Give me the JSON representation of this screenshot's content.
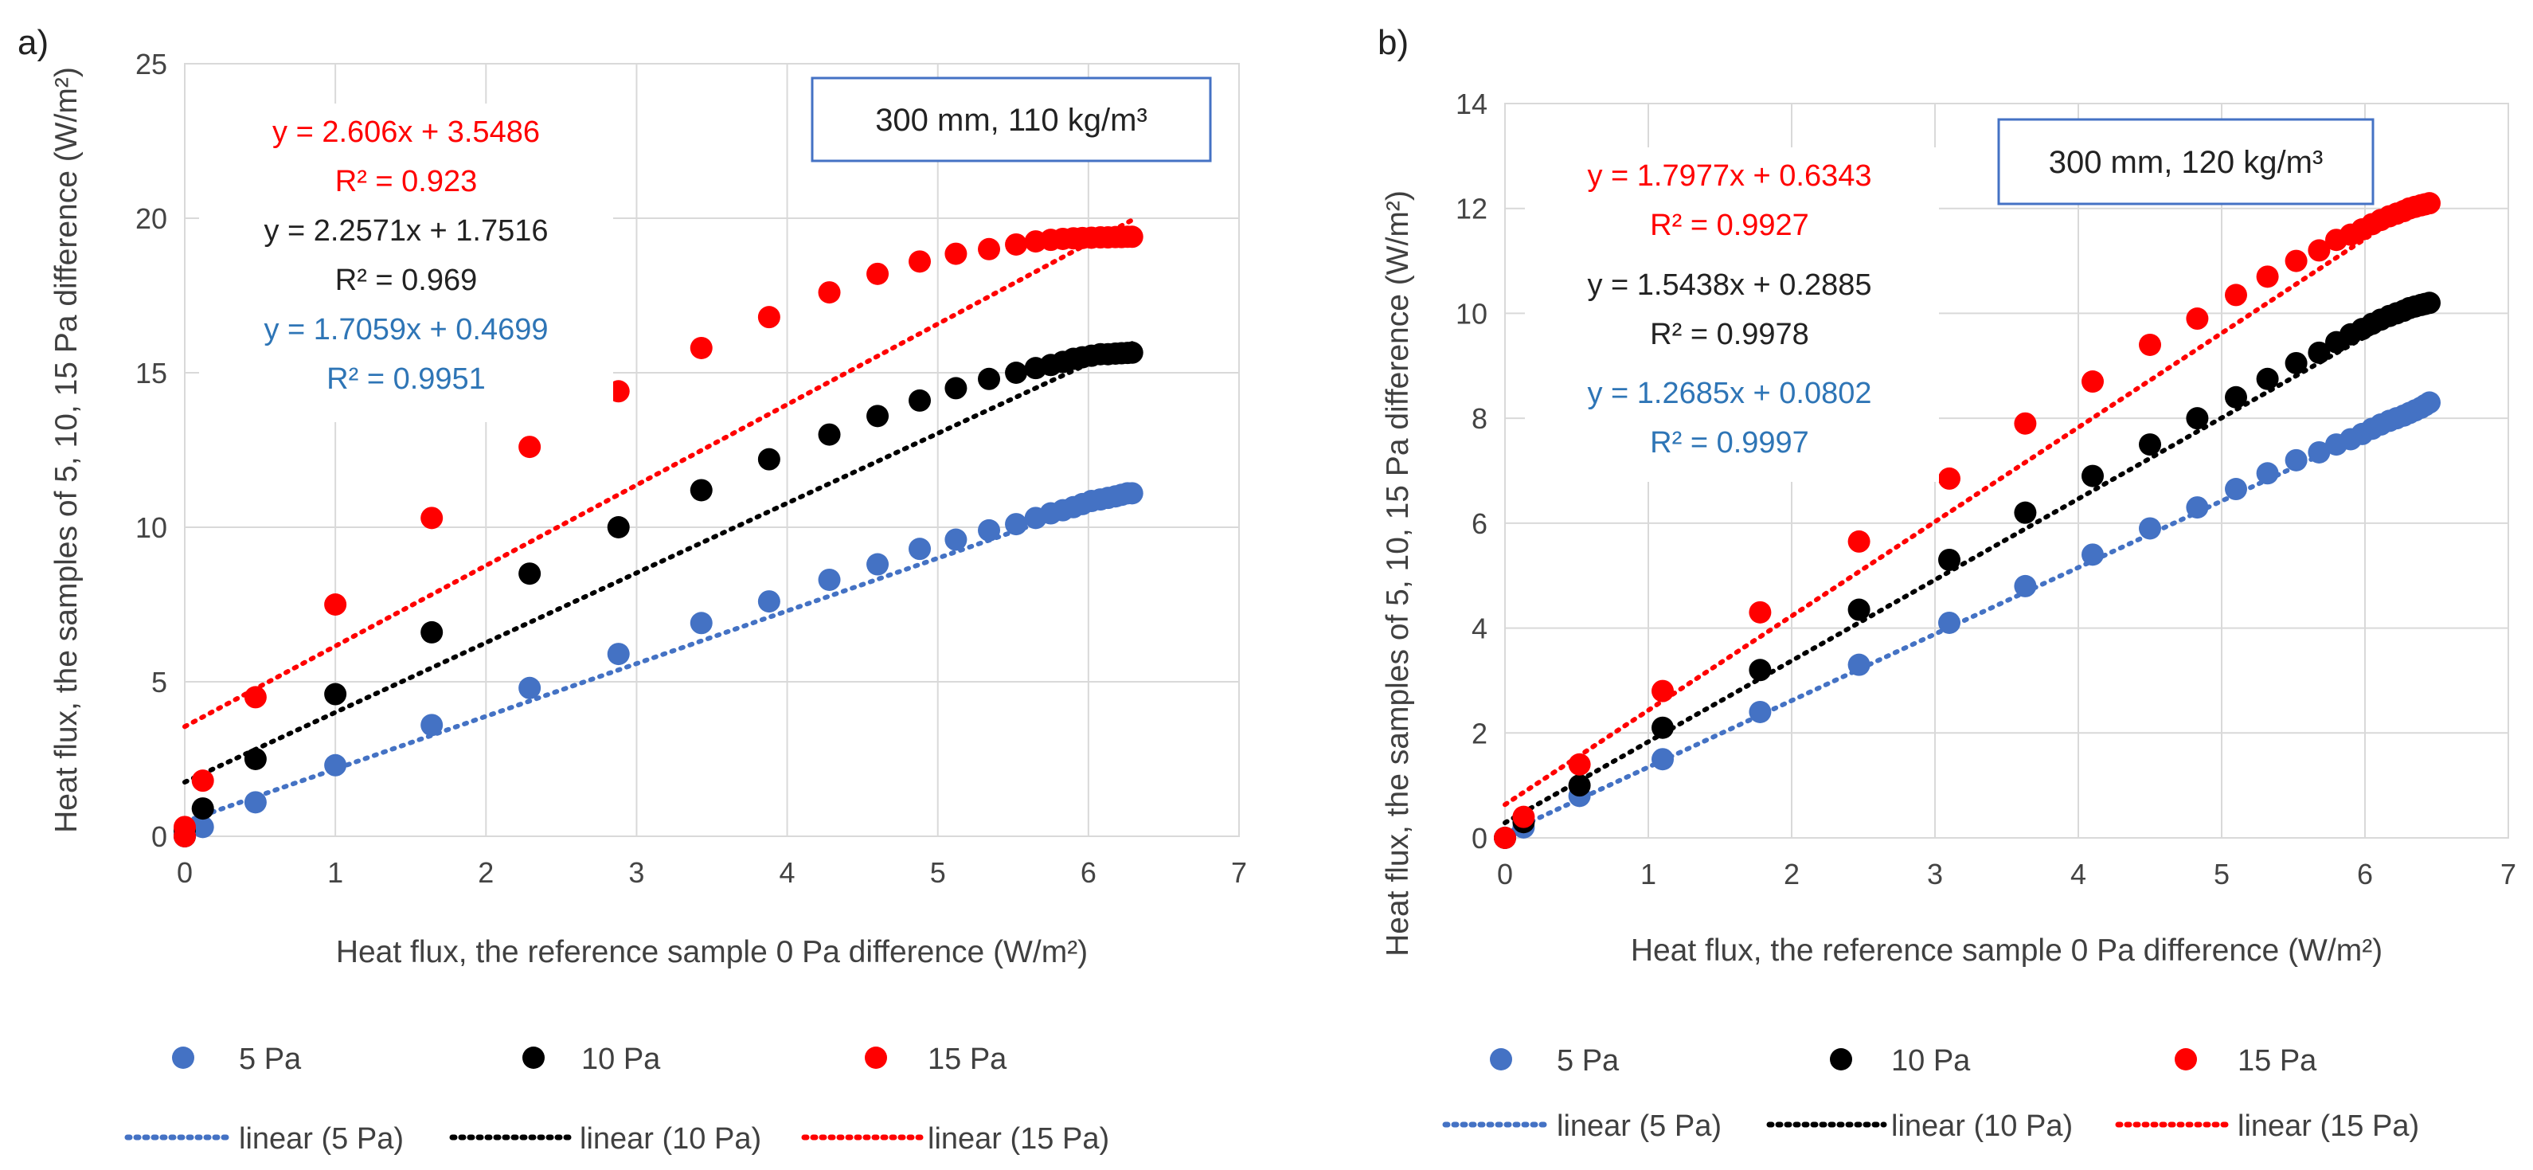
{
  "legend": {
    "marker_labels": [
      "5 Pa",
      "10 Pa",
      "15 Pa"
    ],
    "line_labels": [
      "linear (5 Pa)",
      "linear (10 Pa)",
      "linear (15 Pa)"
    ]
  },
  "colors": {
    "5 Pa": "#4472c4",
    "10 Pa": "#000000",
    "15 Pa": "#ff0000",
    "eq_5": "#2e75b6"
  },
  "chart_data": [
    {
      "type": "scatter",
      "panel_label": "a)",
      "annotation": "300 mm, 110 kg/m³",
      "xlabel": "Heat flux, the reference sample 0 Pa difference (W/m²)",
      "ylabel": "Heat flux, the samples of 5, 10, 15  Pa difference (W/m²)",
      "xlim": [
        0,
        7
      ],
      "ylim": [
        0,
        25
      ],
      "xticks": [
        0,
        1,
        2,
        3,
        4,
        5,
        6,
        7
      ],
      "yticks": [
        0,
        5,
        10,
        15,
        20,
        25
      ],
      "grid": true,
      "series": [
        {
          "name": "5 Pa",
          "color": "#4472c4",
          "x": [
            0.0,
            0.0,
            0.12,
            0.47,
            1.0,
            1.64,
            2.29,
            2.88,
            3.43,
            3.88,
            4.28,
            4.6,
            4.88,
            5.12,
            5.34,
            5.52,
            5.65,
            5.75,
            5.83,
            5.9,
            5.96,
            6.02,
            6.08,
            6.13,
            6.18,
            6.22,
            6.26,
            6.29
          ],
          "y": [
            0.0,
            0.1,
            0.3,
            1.1,
            2.3,
            3.6,
            4.8,
            5.9,
            6.9,
            7.6,
            8.3,
            8.8,
            9.3,
            9.6,
            9.9,
            10.1,
            10.3,
            10.45,
            10.55,
            10.65,
            10.75,
            10.85,
            10.9,
            10.95,
            11.0,
            11.05,
            11.1,
            11.1
          ],
          "trend": {
            "slope": 1.7059,
            "intercept": 0.4699,
            "equation": "y = 1.7059x + 0.4699",
            "r2": "R² = 0.9951",
            "eq_color": "#2e75b6"
          }
        },
        {
          "name": "10 Pa",
          "color": "#000000",
          "x": [
            0.0,
            0.0,
            0.12,
            0.47,
            1.0,
            1.64,
            2.29,
            2.88,
            3.43,
            3.88,
            4.28,
            4.6,
            4.88,
            5.12,
            5.34,
            5.52,
            5.65,
            5.75,
            5.83,
            5.9,
            5.96,
            6.02,
            6.08,
            6.13,
            6.18,
            6.22,
            6.26,
            6.29
          ],
          "y": [
            0.0,
            0.2,
            0.9,
            2.5,
            4.6,
            6.6,
            8.5,
            10.0,
            11.2,
            12.2,
            13.0,
            13.6,
            14.1,
            14.5,
            14.8,
            15.0,
            15.15,
            15.25,
            15.35,
            15.45,
            15.5,
            15.55,
            15.6,
            15.6,
            15.62,
            15.63,
            15.64,
            15.65
          ],
          "trend": {
            "slope": 2.2571,
            "intercept": 1.7516,
            "equation": "y = 2.2571x + 1.7516",
            "r2": "R² = 0.969",
            "eq_color": "#222222"
          }
        },
        {
          "name": "15 Pa",
          "color": "#ff0000",
          "x": [
            0.0,
            0.0,
            0.12,
            0.47,
            1.0,
            1.64,
            2.29,
            2.88,
            3.43,
            3.88,
            4.28,
            4.6,
            4.88,
            5.12,
            5.34,
            5.52,
            5.65,
            5.75,
            5.83,
            5.9,
            5.96,
            6.02,
            6.08,
            6.13,
            6.18,
            6.22,
            6.26,
            6.29
          ],
          "y": [
            0.0,
            0.3,
            1.8,
            4.5,
            7.5,
            10.3,
            12.6,
            14.4,
            15.8,
            16.8,
            17.6,
            18.2,
            18.6,
            18.85,
            19.0,
            19.15,
            19.25,
            19.3,
            19.33,
            19.35,
            19.36,
            19.37,
            19.38,
            19.38,
            19.39,
            19.39,
            19.4,
            19.4
          ],
          "trend": {
            "slope": 2.606,
            "intercept": 3.5486,
            "equation": "y = 2.606x + 3.5486",
            "r2": "R² = 0.923",
            "eq_color": "#ff0000"
          }
        }
      ]
    },
    {
      "type": "scatter",
      "panel_label": "b)",
      "annotation": "300 mm, 120 kg/m³",
      "xlabel": "Heat flux, the reference sample 0 Pa difference (W/m²)",
      "ylabel": "Heat flux, the samples of 5, 10, 15  Pa difference (W/m²)",
      "xlim": [
        0,
        7
      ],
      "ylim": [
        0,
        14
      ],
      "xticks": [
        0,
        1,
        2,
        3,
        4,
        5,
        6,
        7
      ],
      "yticks": [
        0,
        2,
        4,
        6,
        8,
        10,
        12,
        14
      ],
      "grid": true,
      "series": [
        {
          "name": "5 Pa",
          "color": "#4472c4",
          "x": [
            0.0,
            0.13,
            0.52,
            1.1,
            1.78,
            2.47,
            3.1,
            3.63,
            4.1,
            4.5,
            4.83,
            5.1,
            5.32,
            5.52,
            5.68,
            5.8,
            5.9,
            5.98,
            6.05,
            6.11,
            6.17,
            6.22,
            6.27,
            6.31,
            6.35,
            6.39,
            6.42,
            6.45
          ],
          "y": [
            0.0,
            0.2,
            0.8,
            1.5,
            2.4,
            3.3,
            4.1,
            4.8,
            5.4,
            5.9,
            6.3,
            6.65,
            6.95,
            7.2,
            7.35,
            7.5,
            7.6,
            7.7,
            7.8,
            7.88,
            7.95,
            8.0,
            8.05,
            8.1,
            8.15,
            8.2,
            8.25,
            8.3
          ],
          "trend": {
            "slope": 1.2685,
            "intercept": 0.0802,
            "equation": "y = 1.2685x + 0.0802",
            "r2": "R² = 0.9997",
            "eq_color": "#2e75b6"
          }
        },
        {
          "name": "10 Pa",
          "color": "#000000",
          "x": [
            0.0,
            0.13,
            0.52,
            1.1,
            1.78,
            2.47,
            3.1,
            3.63,
            4.1,
            4.5,
            4.83,
            5.1,
            5.32,
            5.52,
            5.68,
            5.8,
            5.9,
            5.98,
            6.05,
            6.11,
            6.17,
            6.22,
            6.27,
            6.31,
            6.35,
            6.39,
            6.42,
            6.45
          ],
          "y": [
            0.0,
            0.3,
            1.0,
            2.1,
            3.2,
            4.35,
            5.3,
            6.2,
            6.9,
            7.5,
            8.0,
            8.4,
            8.75,
            9.05,
            9.25,
            9.45,
            9.6,
            9.7,
            9.8,
            9.88,
            9.95,
            10.0,
            10.05,
            10.1,
            10.13,
            10.16,
            10.18,
            10.2
          ],
          "trend": {
            "slope": 1.5438,
            "intercept": 0.2885,
            "equation": "y = 1.5438x + 0.2885",
            "r2": "R² = 0.9978",
            "eq_color": "#222222"
          }
        },
        {
          "name": "15 Pa",
          "color": "#ff0000",
          "x": [
            0.0,
            0.13,
            0.52,
            1.1,
            1.78,
            2.47,
            3.1,
            3.63,
            4.1,
            4.5,
            4.83,
            5.1,
            5.32,
            5.52,
            5.68,
            5.8,
            5.9,
            5.98,
            6.05,
            6.11,
            6.17,
            6.22,
            6.27,
            6.31,
            6.35,
            6.39,
            6.42,
            6.45
          ],
          "y": [
            0.0,
            0.4,
            1.4,
            2.8,
            4.3,
            5.65,
            6.85,
            7.9,
            8.7,
            9.4,
            9.9,
            10.35,
            10.7,
            11.0,
            11.2,
            11.4,
            11.5,
            11.6,
            11.7,
            11.78,
            11.85,
            11.9,
            11.95,
            12.0,
            12.03,
            12.06,
            12.08,
            12.1
          ],
          "trend": {
            "slope": 1.7977,
            "intercept": 0.6343,
            "equation": "y = 1.7977x + 0.6343",
            "r2": "R² = 0.9927",
            "eq_color": "#ff0000"
          }
        }
      ]
    }
  ]
}
